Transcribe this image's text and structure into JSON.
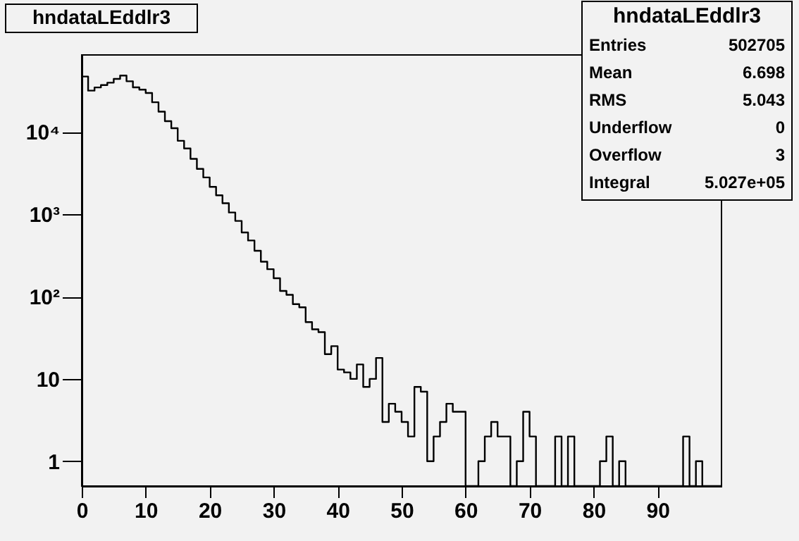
{
  "chart_data": {
    "type": "histogram",
    "title": "hndataLEddlr3",
    "bins": [
      0,
      1,
      2,
      3,
      4,
      5,
      6,
      7,
      8,
      9,
      10,
      11,
      12,
      13,
      14,
      15,
      16,
      17,
      18,
      19,
      20,
      21,
      22,
      23,
      24,
      25,
      26,
      27,
      28,
      29,
      30,
      31,
      32,
      33,
      34,
      35,
      36,
      37,
      38,
      39,
      40,
      41,
      42,
      43,
      44,
      45,
      46,
      47,
      48,
      49,
      50,
      51,
      52,
      53,
      54,
      55,
      56,
      57,
      58,
      59,
      60,
      61,
      62,
      63,
      64,
      65,
      66,
      67,
      68,
      69,
      70,
      71,
      72,
      73,
      74,
      75,
      76,
      77,
      78,
      79,
      80,
      81,
      82,
      83,
      84,
      85,
      86,
      87,
      88,
      89,
      90,
      91,
      92,
      93,
      94,
      95,
      96,
      97,
      98,
      99,
      100
    ],
    "values": [
      47000,
      31700,
      34700,
      37100,
      39600,
      44000,
      48300,
      41200,
      34800,
      32600,
      29700,
      22900,
      17600,
      13500,
      11100,
      7800,
      6300,
      4700,
      3550,
      2800,
      2150,
      1700,
      1360,
      1050,
      830,
      600,
      480,
      360,
      265,
      215,
      167,
      117,
      105,
      81,
      74,
      49,
      40,
      37,
      20,
      25,
      13,
      12,
      10,
      15,
      8,
      10,
      18,
      3,
      5,
      4,
      3,
      2,
      8,
      7,
      1,
      2,
      3,
      5,
      4,
      4,
      null,
      null,
      1,
      2,
      3,
      2,
      2,
      null,
      1,
      4,
      2,
      null,
      null,
      null,
      2,
      null,
      2,
      null,
      null,
      null,
      null,
      1,
      2,
      null,
      1,
      null,
      null,
      null,
      null,
      null,
      null,
      null,
      null,
      null,
      2,
      null,
      1,
      null,
      null,
      null
    ],
    "color": "#000000",
    "xlim": [
      0,
      100
    ],
    "xticks": [
      0,
      10,
      20,
      30,
      40,
      50,
      60,
      70,
      80,
      90
    ],
    "ylim": [
      0.5,
      86000
    ],
    "yticks": [
      1,
      10,
      {
        "value": 100,
        "label": "10²"
      },
      {
        "value": 1000,
        "label": "10³"
      },
      {
        "value": 10000,
        "label": "10⁴"
      }
    ],
    "log": "y",
    "grid": false,
    "annotations": [
      "hndataLEddlr3",
      "Entries",
      "502705",
      "Mean",
      "6.698",
      "RMS",
      "5.043",
      "Underflow",
      "0",
      "Overflow",
      "3",
      "Integral",
      "5.027e+05"
    ]
  }
}
